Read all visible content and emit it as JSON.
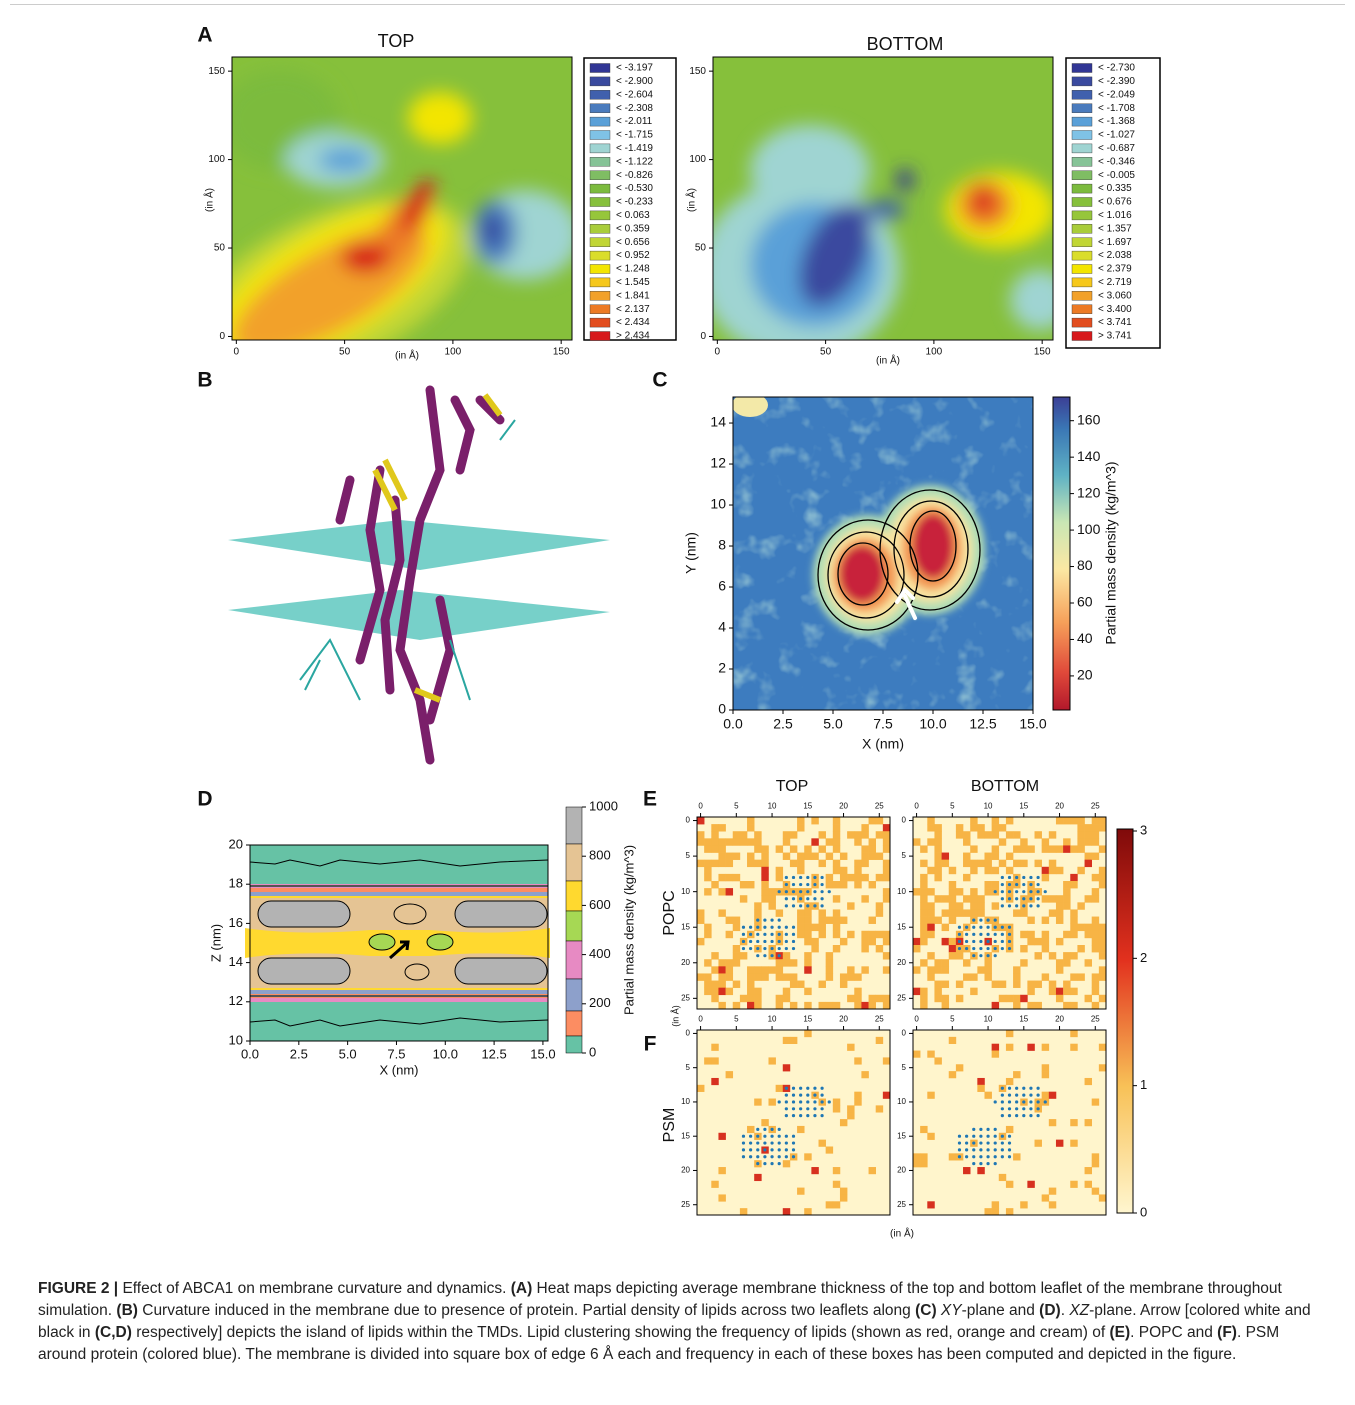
{
  "panel_labels": [
    "A",
    "B",
    "C",
    "D",
    "E",
    "F"
  ],
  "panel_a": {
    "legend_colors": [
      "#313695",
      "#3a4a9f",
      "#4060ad",
      "#4a7bbd",
      "#5aa0d8",
      "#7fc2e6",
      "#9fd4d2",
      "#86c397",
      "#7fbd63",
      "#7cbb3e",
      "#86c03b",
      "#96c63b",
      "#a9cd3a",
      "#c1d634",
      "#dadd2b",
      "#f3e500",
      "#f6c81b",
      "#f2a12a",
      "#ec7a25",
      "#e24d1f",
      "#d7191c"
    ],
    "top": {
      "title": "TOP",
      "xlim": [
        -2,
        155
      ],
      "ylim": [
        -2,
        158
      ],
      "xticks": [
        0,
        50,
        100,
        150
      ],
      "yticks": [
        0,
        50,
        100,
        150
      ],
      "xlabel": "(in Å)",
      "ylabel": "(in Å)",
      "legend": [
        "< -3.197",
        "< -2.900",
        "< -2.604",
        "< -2.308",
        "< -2.011",
        "< -1.715",
        "< -1.419",
        "< -1.122",
        "< -0.826",
        "< -0.530",
        "< -0.233",
        "< 0.063",
        "< 0.359",
        "< 0.656",
        "< 0.952",
        "< 1.248",
        "< 1.545",
        "< 1.841",
        "< 2.137",
        "< 2.434",
        "> 2.434"
      ]
    },
    "bottom": {
      "title": "BOTTOM",
      "xlim": [
        -2,
        155
      ],
      "ylim": [
        -2,
        158
      ],
      "xticks": [
        0,
        50,
        100,
        150
      ],
      "yticks": [
        0,
        50,
        100,
        150
      ],
      "xlabel": "(in Å)",
      "ylabel": "(in Å)",
      "legend": [
        "< -2.730",
        "< -2.390",
        "< -2.049",
        "< -1.708",
        "< -1.368",
        "< -1.027",
        "< -0.687",
        "< -0.346",
        "< -0.005",
        "< 0.335",
        "< 0.676",
        "< 1.016",
        "< 1.357",
        "< 1.697",
        "< 2.038",
        "< 2.379",
        "< 2.719",
        "< 3.060",
        "< 3.400",
        "< 3.741",
        "> 3.741"
      ]
    }
  },
  "panel_c": {
    "xlabel": "X (nm)",
    "ylabel": "Y (nm)",
    "xlim": [
      0,
      15
    ],
    "ylim": [
      0,
      15.27
    ],
    "xticks": [
      {
        "value": 0,
        "label": "0.0"
      },
      2.5,
      {
        "value": 5,
        "label": "5.0"
      },
      7.5,
      {
        "value": 10,
        "label": "10.0"
      },
      12.5,
      {
        "value": 15,
        "label": "15.0"
      }
    ],
    "yticks": [
      0,
      2,
      4,
      6,
      8,
      10,
      12,
      14
    ],
    "colorbar_label": "Partial mass density (kg/m^3)",
    "colorbar_lim": [
      1.3,
      173
    ],
    "colorbar_ticks": [
      20,
      40,
      60,
      80,
      100,
      120,
      140,
      160
    ]
  },
  "panel_d": {
    "xlabel": "X (nm)",
    "ylabel": "Z (nm)",
    "xlim": [
      0,
      15.26
    ],
    "ylim": [
      10,
      20
    ],
    "xticks": [
      {
        "value": 0,
        "label": "0.0"
      },
      2.5,
      {
        "value": 5,
        "label": "5.0"
      },
      7.5,
      {
        "value": 10,
        "label": "10.0"
      },
      12.5,
      {
        "value": 15,
        "label": "15.0"
      }
    ],
    "yticks": [
      10,
      12,
      14,
      16,
      18,
      20
    ],
    "colorbar_label": "Partial mass density (kg/m^3)",
    "colorbar_lim": [
      0,
      1000
    ],
    "colorbar_ticks": [
      0,
      200,
      400,
      600,
      800,
      1000
    ]
  },
  "panel_ef": {
    "columns": [
      "TOP",
      "BOTTOM"
    ],
    "rows": [
      "POPC",
      "PSM"
    ],
    "lim": [
      -0.5,
      26.5
    ],
    "ticks": [
      0,
      5,
      10,
      15,
      20,
      25
    ],
    "xlabel": "(in Å)",
    "ylabel": "(in Å)",
    "colorbar_lim": [
      0,
      3
    ],
    "colorbar_ticks": [
      0,
      1,
      2,
      3
    ]
  },
  "caption": [
    {
      "bold": "FIGURE 2 | "
    },
    {
      "text": "Effect of ABCA1 on membrane curvature and dynamics. "
    },
    {
      "bold": "(A)"
    },
    {
      "text": " Heat maps depicting average membrane thickness of the top and bottom leaflet of the membrane throughout simulation. "
    },
    {
      "bold": "(B)"
    },
    {
      "text": " Curvature induced in the membrane due to presence of protein. Partial density of lipids across two leaflets along "
    },
    {
      "bold": "(C)"
    },
    {
      "italic": " XY"
    },
    {
      "text": "-plane and "
    },
    {
      "bold": "(D)"
    },
    {
      "text": ". "
    },
    {
      "italic": "XZ"
    },
    {
      "text": "-plane. Arrow [colored white and black in "
    },
    {
      "bold": "(C,D)"
    },
    {
      "text": " respectively] depicts the island of lipids within the TMDs. Lipid clustering showing the frequency of lipids (shown as red, orange and cream) of "
    },
    {
      "bold": "(E)"
    },
    {
      "text": ". POPC and "
    },
    {
      "bold": "(F)"
    },
    {
      "text": ". PSM around protein (colored blue). The membrane is divided into square box of edge 6 Å each and frequency in each of these boxes has been computed and depicted in the figure."
    }
  ]
}
